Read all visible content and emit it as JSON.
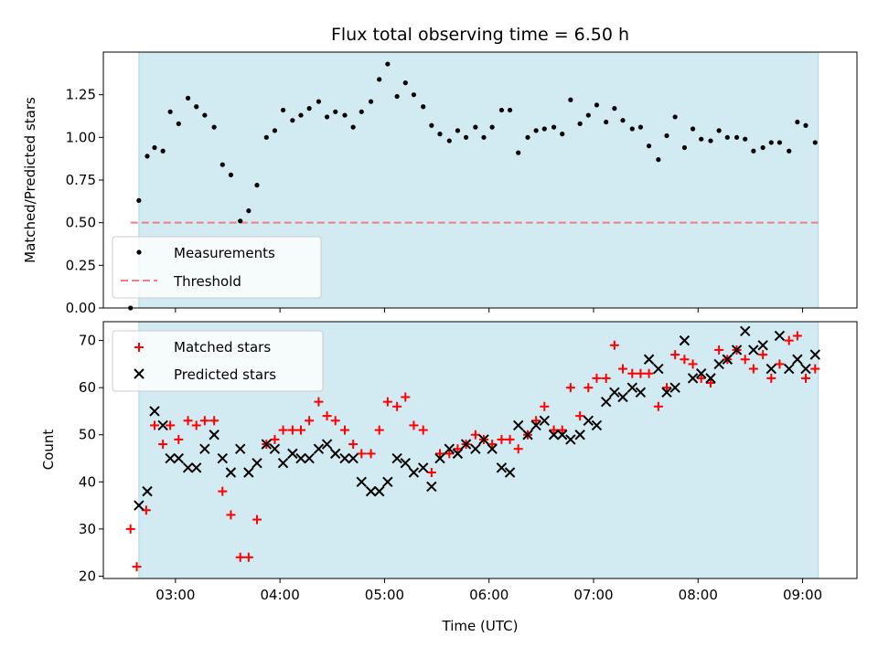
{
  "title": "Flux total observing time = 6.50 h",
  "colors": {
    "band": "#add8e6",
    "threshold": "#f08080",
    "matched": "#ff0000",
    "predicted": "#000000",
    "measure": "#000000"
  },
  "chart_data": [
    {
      "type": "scatter",
      "ylabel": "Matched/Predicted stars",
      "xlim": [
        2.31,
        9.52
      ],
      "ylim": [
        0,
        1.5
      ],
      "yticks": [
        0.0,
        0.25,
        0.5,
        0.75,
        1.0,
        1.25
      ],
      "ytick_labels": [
        "0.00",
        "0.25",
        "0.50",
        "0.75",
        "1.00",
        "1.25"
      ],
      "shaded_span": [
        2.65,
        9.15
      ],
      "threshold": {
        "label": "Threshold",
        "value": 0.5,
        "x_range": [
          2.57,
          9.15
        ],
        "style": "dashed"
      },
      "series": [
        {
          "name": "Measurements",
          "x": [
            2.57,
            2.65,
            2.73,
            2.8,
            2.88,
            2.95,
            3.03,
            3.12,
            3.2,
            3.28,
            3.37,
            3.45,
            3.53,
            3.62,
            3.7,
            3.78,
            3.87,
            3.95,
            4.03,
            4.12,
            4.2,
            4.28,
            4.37,
            4.45,
            4.53,
            4.62,
            4.7,
            4.78,
            4.87,
            4.95,
            5.03,
            5.12,
            5.2,
            5.28,
            5.37,
            5.45,
            5.53,
            5.62,
            5.7,
            5.78,
            5.87,
            5.95,
            6.03,
            6.12,
            6.2,
            6.28,
            6.37,
            6.45,
            6.53,
            6.62,
            6.7,
            6.78,
            6.87,
            6.95,
            7.03,
            7.12,
            7.2,
            7.28,
            7.37,
            7.45,
            7.53,
            7.62,
            7.7,
            7.78,
            7.87,
            7.95,
            8.03,
            8.12,
            8.2,
            8.28,
            8.37,
            8.45,
            8.53,
            8.62,
            8.7,
            8.78,
            8.87,
            8.95,
            9.03,
            9.12
          ],
          "y": [
            0.0,
            0.63,
            0.89,
            0.94,
            0.92,
            1.15,
            1.08,
            1.23,
            1.18,
            1.13,
            1.06,
            0.84,
            0.78,
            0.51,
            0.57,
            0.72,
            1.0,
            1.04,
            1.16,
            1.1,
            1.13,
            1.17,
            1.21,
            1.12,
            1.15,
            1.13,
            1.06,
            1.15,
            1.21,
            1.34,
            1.43,
            1.24,
            1.32,
            1.25,
            1.18,
            1.07,
            1.02,
            0.98,
            1.04,
            1.0,
            1.06,
            1.0,
            1.06,
            1.16,
            1.16,
            0.91,
            1.0,
            1.04,
            1.05,
            1.06,
            1.02,
            1.22,
            1.08,
            1.13,
            1.19,
            1.09,
            1.17,
            1.1,
            1.05,
            1.06,
            0.95,
            0.87,
            1.01,
            1.12,
            0.94,
            1.05,
            0.99,
            0.98,
            1.04,
            1.0,
            1.0,
            0.99,
            0.92,
            0.94,
            0.97,
            0.97,
            0.92,
            1.09,
            1.07,
            0.97
          ]
        }
      ],
      "legend": {
        "placement": "lower-left",
        "entries": [
          "Measurements",
          "Threshold"
        ]
      }
    },
    {
      "type": "scatter",
      "xlabel": "Time (UTC)",
      "ylabel": "Count",
      "xlim": [
        2.31,
        9.52
      ],
      "ylim": [
        19.5,
        74
      ],
      "yticks": [
        20,
        30,
        40,
        50,
        60,
        70
      ],
      "ytick_labels": [
        "20",
        "30",
        "40",
        "50",
        "60",
        "70"
      ],
      "xticks": [
        3,
        4,
        5,
        6,
        7,
        8,
        9
      ],
      "xtick_labels": [
        "03:00",
        "04:00",
        "05:00",
        "06:00",
        "07:00",
        "08:00",
        "09:00"
      ],
      "shaded_span": [
        2.65,
        9.15
      ],
      "series": [
        {
          "name": "Matched stars",
          "marker": "+",
          "x": [
            2.57,
            2.63,
            2.72,
            2.8,
            2.88,
            2.95,
            3.03,
            3.12,
            3.2,
            3.28,
            3.37,
            3.45,
            3.53,
            3.62,
            3.7,
            3.78,
            3.87,
            3.95,
            4.03,
            4.12,
            4.2,
            4.28,
            4.37,
            4.45,
            4.53,
            4.62,
            4.7,
            4.78,
            4.87,
            4.95,
            5.03,
            5.12,
            5.2,
            5.28,
            5.37,
            5.45,
            5.53,
            5.62,
            5.7,
            5.78,
            5.87,
            5.95,
            6.03,
            6.12,
            6.2,
            6.28,
            6.37,
            6.45,
            6.53,
            6.62,
            6.7,
            6.78,
            6.87,
            6.95,
            7.03,
            7.12,
            7.2,
            7.28,
            7.37,
            7.45,
            7.53,
            7.62,
            7.7,
            7.78,
            7.87,
            7.95,
            8.03,
            8.12,
            8.2,
            8.28,
            8.37,
            8.45,
            8.53,
            8.62,
            8.7,
            8.78,
            8.87,
            8.95,
            9.03,
            9.12
          ],
          "y": [
            30,
            22,
            34,
            52,
            48,
            52,
            49,
            53,
            52,
            53,
            53,
            38,
            33,
            24,
            24,
            32,
            48,
            49,
            51,
            51,
            51,
            53,
            57,
            54,
            53,
            51,
            48,
            46,
            46,
            51,
            57,
            56,
            58,
            52,
            51,
            42,
            46,
            46,
            47,
            48,
            50,
            49,
            48,
            49,
            49,
            47,
            50,
            53,
            56,
            51,
            51,
            60,
            54,
            60,
            62,
            62,
            69,
            64,
            63,
            63,
            63,
            56,
            60,
            67,
            66,
            65,
            62,
            61,
            68,
            66,
            68,
            66,
            64,
            67,
            62,
            65,
            70,
            71,
            62,
            64
          ]
        },
        {
          "name": "Predicted stars",
          "marker": "x",
          "x": [
            2.65,
            2.73,
            2.8,
            2.88,
            2.95,
            3.03,
            3.12,
            3.2,
            3.28,
            3.37,
            3.45,
            3.53,
            3.62,
            3.7,
            3.78,
            3.87,
            3.95,
            4.03,
            4.12,
            4.2,
            4.28,
            4.37,
            4.45,
            4.53,
            4.62,
            4.7,
            4.78,
            4.87,
            4.95,
            5.03,
            5.12,
            5.2,
            5.28,
            5.37,
            5.45,
            5.53,
            5.62,
            5.7,
            5.78,
            5.87,
            5.95,
            6.03,
            6.12,
            6.2,
            6.28,
            6.37,
            6.45,
            6.53,
            6.62,
            6.7,
            6.78,
            6.87,
            6.95,
            7.03,
            7.12,
            7.2,
            7.28,
            7.37,
            7.45,
            7.53,
            7.62,
            7.7,
            7.78,
            7.87,
            7.95,
            8.03,
            8.12,
            8.2,
            8.28,
            8.37,
            8.45,
            8.53,
            8.62,
            8.7,
            8.78,
            8.87,
            8.95,
            9.03,
            9.12
          ],
          "y": [
            35,
            38,
            55,
            52,
            45,
            45,
            43,
            43,
            47,
            50,
            45,
            42,
            47,
            42,
            44,
            48,
            47,
            44,
            46,
            45,
            45,
            47,
            48,
            46,
            45,
            45,
            40,
            38,
            38,
            40,
            45,
            44,
            42,
            43,
            39,
            45,
            47,
            46,
            48,
            47,
            49,
            47,
            43,
            42,
            52,
            50,
            52,
            53,
            50,
            50,
            49,
            50,
            53,
            52,
            57,
            59,
            58,
            60,
            59,
            66,
            64,
            59,
            60,
            70,
            62,
            63,
            62,
            65,
            66,
            68,
            72,
            68,
            69,
            64,
            71,
            64,
            66,
            64,
            67
          ]
        }
      ],
      "legend": {
        "placement": "top-left",
        "entries": [
          "Matched stars",
          "Predicted stars"
        ]
      }
    }
  ]
}
